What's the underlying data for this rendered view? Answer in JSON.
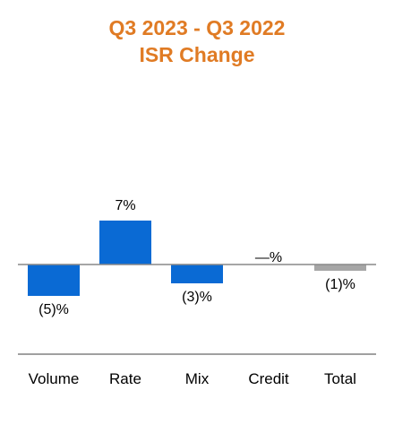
{
  "colors": {
    "title": "#e07b24",
    "positive_bar": "#0a6ad4",
    "negative_bar": "#0a6ad4",
    "total_bar": "#a6a6a6",
    "axis_line": "#808080",
    "baseline": "#888888"
  },
  "chart_data": {
    "type": "bar",
    "title_lines": [
      "Q3 2023 - Q3 2022",
      "ISR Change"
    ],
    "categories": [
      "Volume",
      "Rate",
      "Mix",
      "Credit",
      "Total"
    ],
    "values": [
      -5,
      7,
      -3,
      0,
      -1
    ],
    "data_labels": [
      "(5)%",
      "7%",
      "(3)%",
      "—%",
      "(1)%"
    ],
    "bar_roles": [
      "component",
      "component",
      "component",
      "component",
      "total"
    ],
    "xlabel": "",
    "ylabel": "",
    "grid": false,
    "legend": "none"
  }
}
